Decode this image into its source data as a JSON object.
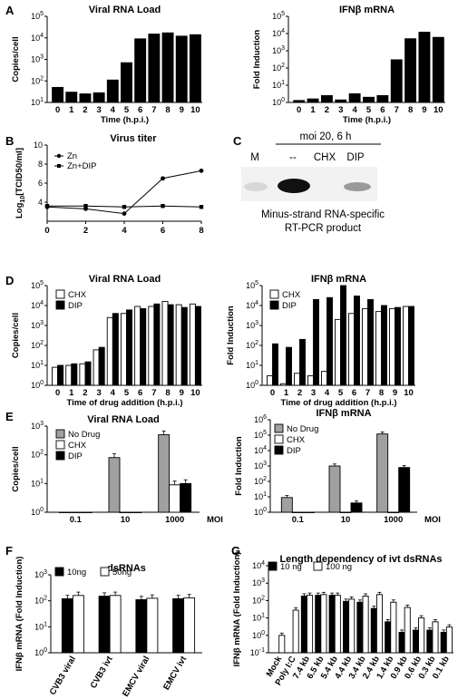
{
  "panel_letters": [
    "A",
    "B",
    "C",
    "D",
    "E",
    "F",
    "G"
  ],
  "gel": {
    "header": "moi 20, 6 h",
    "lanes": [
      "M",
      "--",
      "CHX",
      "DIP"
    ],
    "caption_line1": "Minus-strand RNA-specific",
    "caption_line2": "RT-PCR product"
  },
  "chart_data": [
    {
      "id": "A-left",
      "type": "bar",
      "title": "Viral RNA Load",
      "xlabel": "Time (h.p.i.)",
      "ylabel": "Copies/cell",
      "yscale": "log",
      "ylim": [
        10,
        100000
      ],
      "categories": [
        "0",
        "1",
        "2",
        "3",
        "4",
        "5",
        "6",
        "7",
        "8",
        "9",
        "10"
      ],
      "values": [
        50,
        30,
        25,
        28,
        110,
        700,
        9000,
        15000,
        17000,
        12000,
        14000
      ]
    },
    {
      "id": "A-right",
      "type": "bar",
      "title": "IFNβ mRNA",
      "xlabel": "Time (h.p.i.)",
      "ylabel": "Fold Induction",
      "yscale": "log",
      "ylim": [
        1,
        100000
      ],
      "categories": [
        "0",
        "1",
        "2",
        "3",
        "4",
        "5",
        "6",
        "7",
        "8",
        "9",
        "10"
      ],
      "values": [
        1.3,
        1.6,
        2.5,
        1.4,
        3.2,
        2.0,
        2.5,
        300,
        5000,
        12000,
        6000
      ]
    },
    {
      "id": "B",
      "type": "line",
      "title": "Virus titer",
      "xlabel": "",
      "ylabel": "Log10[TCID50/ml]",
      "ylim": [
        2,
        10
      ],
      "xlim": [
        0,
        8
      ],
      "xticks": [
        "0",
        "2",
        "4",
        "6",
        "8"
      ],
      "yticks": [
        "4",
        "6",
        "8",
        "10"
      ],
      "series": [
        {
          "name": "Zn",
          "marker": "circle",
          "x": [
            0,
            2,
            4,
            6,
            8
          ],
          "y": [
            3.5,
            3.3,
            2.8,
            6.5,
            7.3
          ]
        },
        {
          "name": "Zn+DIP",
          "marker": "square",
          "x": [
            0,
            2,
            4,
            6,
            8
          ],
          "y": [
            3.6,
            3.6,
            3.5,
            3.6,
            3.5
          ]
        }
      ]
    },
    {
      "id": "D-left",
      "type": "bar",
      "title": "Viral RNA Load",
      "xlabel": "Time of drug addition (h.p.i.)",
      "ylabel": "Copies/cell",
      "yscale": "log",
      "ylim": [
        1,
        100000
      ],
      "categories": [
        "0",
        "1",
        "2",
        "3",
        "4",
        "5",
        "6",
        "7",
        "8",
        "9",
        "10"
      ],
      "series": [
        {
          "name": "CHX",
          "color": "#ffffff",
          "values": [
            8,
            10,
            12,
            60,
            2500,
            4000,
            9000,
            9000,
            16000,
            11000,
            12000
          ]
        },
        {
          "name": "DIP",
          "color": "#000000",
          "values": [
            10,
            12,
            15,
            80,
            4000,
            6000,
            7000,
            12000,
            11000,
            8000,
            9000
          ]
        }
      ]
    },
    {
      "id": "D-right",
      "type": "bar",
      "title": "IFNβ mRNA",
      "xlabel": "Time of drug addition (h.p.i.)",
      "ylabel": "Fold Induction",
      "yscale": "log",
      "ylim": [
        1,
        100000
      ],
      "categories": [
        "0",
        "1",
        "2",
        "3",
        "4",
        "5",
        "6",
        "7",
        "8",
        "9",
        "10"
      ],
      "series": [
        {
          "name": "CHX",
          "color": "#ffffff",
          "values": [
            3,
            1.2,
            4,
            3,
            5,
            2000,
            4000,
            7000,
            5000,
            7000,
            9000
          ]
        },
        {
          "name": "DIP",
          "color": "#000000",
          "values": [
            120,
            80,
            200,
            20000,
            25000,
            100000,
            30000,
            20000,
            10000,
            8000,
            9000
          ]
        }
      ]
    },
    {
      "id": "E-left",
      "type": "bar",
      "title": "Viral RNA Load",
      "xlabel": "MOI",
      "ylabel": "Copies/cell",
      "yscale": "log",
      "ylim": [
        1,
        1000
      ],
      "error_bars": true,
      "categories": [
        "0.1",
        "10",
        "1000"
      ],
      "series": [
        {
          "name": "No Drug",
          "color": "#a0a0a0",
          "values": [
            1,
            80,
            500
          ]
        },
        {
          "name": "CHX",
          "color": "#ffffff",
          "values": [
            1,
            1,
            9
          ]
        },
        {
          "name": "DIP",
          "color": "#000000",
          "values": [
            1,
            1,
            10
          ]
        }
      ]
    },
    {
      "id": "E-right",
      "type": "bar",
      "title": "IFNβ mRNA",
      "xlabel": "MOI",
      "ylabel": "Fold Induction",
      "yscale": "log",
      "ylim": [
        1,
        1000000
      ],
      "error_bars": true,
      "categories": [
        "0.1",
        "10",
        "1000"
      ],
      "series": [
        {
          "name": "No Drug",
          "color": "#a0a0a0",
          "values": [
            9,
            1000,
            120000
          ]
        },
        {
          "name": "CHX",
          "color": "#ffffff",
          "values": [
            1,
            1,
            1
          ]
        },
        {
          "name": "DIP",
          "color": "#000000",
          "values": [
            1,
            4,
            800
          ]
        }
      ]
    },
    {
      "id": "F",
      "type": "bar",
      "title": "dsRNAs",
      "xlabel": "",
      "ylabel": "IFNβ mRNA (Fold Induction)",
      "yscale": "log",
      "ylim": [
        1,
        1000
      ],
      "error_bars": true,
      "categories": [
        "CVB3 viral",
        "CVB3 ivt",
        "EMCV viral",
        "EMCV ivt"
      ],
      "series": [
        {
          "name": "10ng",
          "color": "#000000",
          "values": [
            120,
            150,
            110,
            120
          ]
        },
        {
          "name": "50ng",
          "color": "#ffffff",
          "values": [
            160,
            160,
            125,
            130
          ]
        }
      ]
    },
    {
      "id": "G",
      "type": "bar",
      "title": "Length dependency of ivt dsRNAs",
      "xlabel": "",
      "ylabel": "IFNβ mRNA (Fold Induction)",
      "yscale": "log",
      "ylim": [
        0.1,
        10000
      ],
      "error_bars": true,
      "categories": [
        "Mock",
        "Poly I:C",
        "7.4 kb",
        "6.5 kb",
        "5.4 kb",
        "4.4 kb",
        "3.4 kb",
        "2.4 kb",
        "1.4 kb",
        "0.9 kb",
        "0.6 kb",
        "0.3 kb",
        "0.1 kb"
      ],
      "series": [
        {
          "name": "10 ng",
          "color": "#000000",
          "values": [
            null,
            null,
            180,
            200,
            200,
            90,
            80,
            35,
            6,
            1.5,
            2,
            2,
            1.5
          ]
        },
        {
          "name": "100 ng",
          "color": "#ffffff",
          "values": [
            1,
            28,
            200,
            220,
            200,
            120,
            180,
            220,
            80,
            40,
            10,
            6,
            3
          ]
        }
      ]
    }
  ]
}
